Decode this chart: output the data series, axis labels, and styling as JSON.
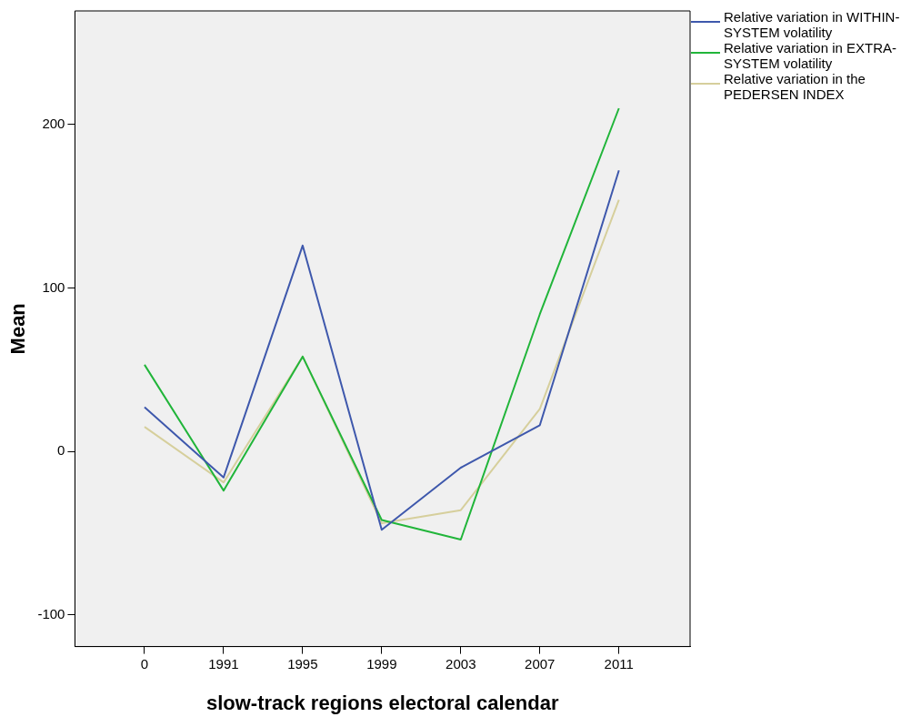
{
  "chart_data": {
    "type": "line",
    "xlabel": "slow-track regions electoral calendar",
    "ylabel": "Mean",
    "categories": [
      "0",
      "1991",
      "1995",
      "1999",
      "2003",
      "2007",
      "2011"
    ],
    "series": [
      {
        "name": "Relative variation in WITHIN-SYSTEM volatility",
        "color": "#3e58ac",
        "values": [
          27,
          -16,
          126,
          -48,
          -10,
          16,
          172
        ]
      },
      {
        "name": "Relative variation in EXTRA-SYSTEM volatility",
        "color": "#21b53a",
        "values": [
          53,
          -24,
          58,
          -42,
          -54,
          84,
          210
        ]
      },
      {
        "name": "Relative variation in the PEDERSEN INDEX",
        "color": "#d6cf9c",
        "values": [
          15,
          -19,
          58,
          -44,
          -36,
          26,
          154
        ]
      }
    ],
    "ylim": [
      -119.5,
      269.6
    ],
    "yticks": [
      -100,
      0,
      100,
      200
    ],
    "grid": false,
    "legend": "top right",
    "marker": "none",
    "line_style": "solid"
  }
}
